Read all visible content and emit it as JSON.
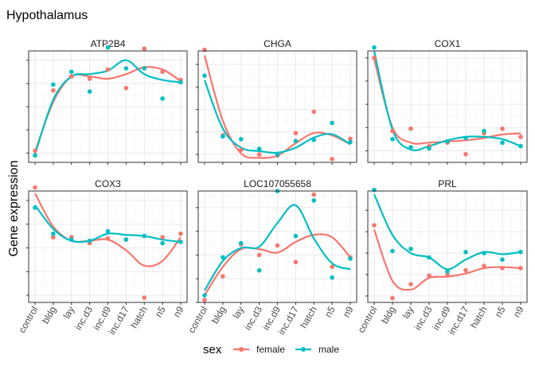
{
  "chart_data": {
    "type": "scatter",
    "title": "Hypothalamus",
    "ylabel": "Gene expression",
    "xlabel": "",
    "categories": [
      "control",
      "bldg",
      "lay",
      "inc.d3",
      "inc.d9",
      "inc.d17",
      "hatch",
      "n5",
      "n9"
    ],
    "legend": {
      "title": "sex",
      "position": "bottom",
      "entries": [
        {
          "name": "female",
          "color": "#F8766D"
        },
        {
          "name": "male",
          "color": "#00BFC4"
        }
      ]
    },
    "panels": [
      {
        "name": "ATP2B4",
        "ylim": [
          -0.4,
          4.4
        ],
        "female_points": [
          0.1,
          2.7,
          3.3,
          3.2,
          3.6,
          2.8,
          4.5,
          3.5,
          3.15
        ],
        "male_points": [
          -0.1,
          2.95,
          3.5,
          2.65,
          4.55,
          3.65,
          3.65,
          2.35,
          3.05
        ],
        "female_curve": [
          0.05,
          2.2,
          3.3,
          3.3,
          3.2,
          3.4,
          3.7,
          3.6,
          3.1
        ],
        "male_curve": [
          -0.05,
          2.3,
          3.3,
          3.4,
          3.55,
          4.0,
          3.4,
          3.15,
          3.05
        ]
      },
      {
        "name": "CHGA",
        "ylim": [
          -0.35,
          4.6
        ],
        "female_points": [
          4.65,
          0.85,
          0.2,
          0.0,
          -0.05,
          0.95,
          1.9,
          -0.2,
          0.7
        ],
        "male_points": [
          3.5,
          0.8,
          0.68,
          0.25,
          0.0,
          0.6,
          0.65,
          1.4,
          0.55
        ],
        "female_curve": [
          4.4,
          1.5,
          0.05,
          -0.15,
          -0.05,
          0.5,
          0.95,
          0.85,
          0.45
        ],
        "male_curve": [
          3.3,
          1.15,
          0.3,
          0.15,
          0.08,
          0.3,
          0.75,
          0.9,
          0.45
        ]
      },
      {
        "name": "COX1",
        "ylim": [
          -0.5,
          4.3
        ],
        "female_points": [
          4.0,
          0.85,
          0.95,
          0.2,
          0.35,
          -0.15,
          0.75,
          0.95,
          0.6
        ],
        "male_points": [
          4.45,
          0.5,
          0.15,
          0.1,
          0.4,
          0.55,
          0.85,
          0.35,
          0.2
        ],
        "female_curve": [
          3.95,
          1.0,
          0.35,
          0.35,
          0.4,
          0.45,
          0.55,
          0.7,
          0.75
        ],
        "male_curve": [
          4.3,
          0.9,
          0.05,
          0.2,
          0.45,
          0.6,
          0.6,
          0.5,
          0.2
        ]
      },
      {
        "name": "COX3",
        "ylim": [
          -0.3,
          4.4
        ],
        "female_points": [
          4.55,
          2.45,
          2.45,
          2.2,
          2.4,
          2.35,
          -0.1,
          2.45,
          2.6
        ],
        "male_points": [
          3.7,
          2.6,
          2.35,
          2.3,
          2.7,
          2.35,
          2.5,
          2.2,
          2.25
        ],
        "female_curve": [
          4.3,
          2.9,
          2.3,
          2.3,
          2.35,
          1.9,
          1.25,
          1.45,
          2.45
        ],
        "male_curve": [
          3.8,
          2.8,
          2.3,
          2.3,
          2.6,
          2.55,
          2.5,
          2.35,
          2.25
        ]
      },
      {
        "name": "LOC107055658",
        "ylim": [
          0.0,
          4.7
        ],
        "female_points": [
          0.1,
          1.1,
          2.45,
          2.0,
          2.4,
          1.7,
          4.55,
          1.5,
          1.9
        ],
        "male_points": [
          0.3,
          1.9,
          2.5,
          1.35,
          4.7,
          2.8,
          4.3,
          1.05,
          1.85
        ],
        "female_curve": [
          0.3,
          1.5,
          2.25,
          2.25,
          2.1,
          2.55,
          2.85,
          2.75,
          1.9
        ],
        "male_curve": [
          0.5,
          1.75,
          2.3,
          2.35,
          3.35,
          4.1,
          2.7,
          1.65,
          1.4
        ]
      },
      {
        "name": "PRL",
        "ylim": [
          -0.3,
          4.9
        ],
        "female_points": [
          3.3,
          -0.1,
          0.55,
          0.95,
          1.0,
          1.2,
          1.4,
          1.3,
          1.3
        ],
        "male_points": [
          4.95,
          2.1,
          2.2,
          1.8,
          1.15,
          2.05,
          2.0,
          1.7,
          2.05
        ],
        "female_curve": [
          3.1,
          0.7,
          0.3,
          0.85,
          0.9,
          1.05,
          1.3,
          1.35,
          1.3
        ],
        "male_curve": [
          4.75,
          2.85,
          2.0,
          1.8,
          1.25,
          1.7,
          2.05,
          1.95,
          2.05
        ]
      }
    ]
  }
}
